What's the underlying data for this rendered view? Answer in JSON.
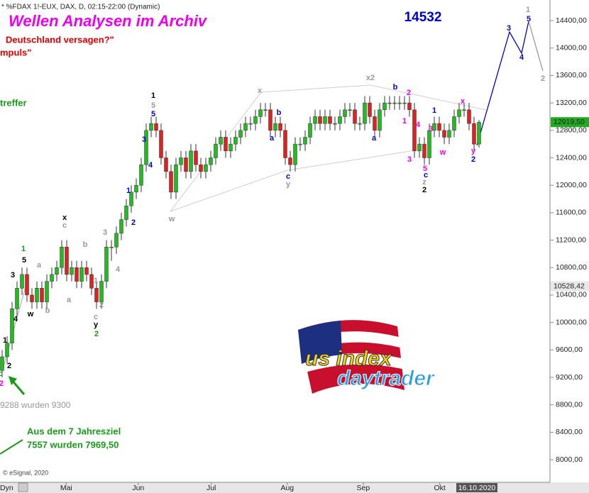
{
  "chart_data": {
    "type": "candlestick",
    "header": "* %FDAX 1!-EUX, DAX, D, 02:15-22:00 (Dynamic)",
    "title": "Wellen Analysen im Archiv",
    "headline_value": "14532",
    "notes": [
      "Deutschland versagen?\"",
      "mpuls\"",
      "treffer",
      "9288 wurden 9300",
      "Aus dem 7 Jahresziel",
      "7557 wurden 7969,50"
    ],
    "copyright": "© eSignal, 2020",
    "corner_label": "Dyn",
    "last_date_label": "16.10.2020",
    "logo": [
      "us index",
      "daytrader"
    ],
    "up_color": "#22bb22",
    "down_color": "#dd2222",
    "ylim": [
      7670,
      14700
    ],
    "yticks": [
      {
        "value": 8000,
        "label": "8000,00"
      },
      {
        "value": 8400,
        "label": "8400,00"
      },
      {
        "value": 8800,
        "label": "8800,00"
      },
      {
        "value": 9200,
        "label": "9200,00"
      },
      {
        "value": 9600,
        "label": "9600,00"
      },
      {
        "value": 10000,
        "label": "10000,00"
      },
      {
        "value": 10400,
        "label": "10400,00"
      },
      {
        "value": 10800,
        "label": "10800,00"
      },
      {
        "value": 11200,
        "label": "11200,00"
      },
      {
        "value": 11600,
        "label": "11600,00"
      },
      {
        "value": 12000,
        "label": "12000,00"
      },
      {
        "value": 12400,
        "label": "12400,00"
      },
      {
        "value": 12800,
        "label": "12800,00"
      },
      {
        "value": 13200,
        "label": "13200,00"
      },
      {
        "value": 13600,
        "label": "13600,00"
      },
      {
        "value": 14000,
        "label": "14000,00"
      },
      {
        "value": 14400,
        "label": "14400,00"
      }
    ],
    "xticks": [
      {
        "value": 12.9,
        "label": "Mai"
      },
      {
        "value": 27.4,
        "label": "Jun"
      },
      {
        "value": 42.1,
        "label": "Jul"
      },
      {
        "value": 57.4,
        "label": "Aug"
      },
      {
        "value": 72.7,
        "label": "Sep"
      },
      {
        "value": 88.1,
        "label": "Okt"
      }
    ],
    "price_labels": [
      {
        "value": 12919.5,
        "label": "12919,50",
        "color": "#22aa22"
      },
      {
        "value": 10528.42,
        "label": "10528,42",
        "color": "#e8e8e8"
      }
    ],
    "ohlc": [
      [
        9300,
        9600,
        9200,
        9500
      ],
      [
        9500,
        9800,
        9400,
        9700
      ],
      [
        9700,
        10300,
        9600,
        10200
      ],
      [
        10200,
        10600,
        10100,
        10500
      ],
      [
        10500,
        10800,
        10400,
        10700
      ],
      [
        10700,
        10800,
        10300,
        10400
      ],
      [
        10400,
        10500,
        10200,
        10300
      ],
      [
        10300,
        10600,
        10200,
        10500
      ],
      [
        10500,
        10600,
        10200,
        10300
      ],
      [
        10300,
        10700,
        10200,
        10600
      ],
      [
        10600,
        10800,
        10500,
        10700
      ],
      [
        10700,
        10900,
        10600,
        10800
      ],
      [
        10800,
        11200,
        10700,
        11100
      ],
      [
        11100,
        11200,
        10600,
        10700
      ],
      [
        10700,
        10900,
        10600,
        10800
      ],
      [
        10800,
        10900,
        10500,
        10600
      ],
      [
        10600,
        10900,
        10500,
        10800
      ],
      [
        10800,
        10900,
        10600,
        10700
      ],
      [
        10700,
        10800,
        10400,
        10500
      ],
      [
        10500,
        10600,
        10200,
        10300
      ],
      [
        10300,
        10700,
        10200,
        10600
      ],
      [
        10600,
        11200,
        10500,
        11100
      ],
      [
        11100,
        11200,
        10900,
        11100
      ],
      [
        11100,
        11400,
        11000,
        11300
      ],
      [
        11300,
        11600,
        11200,
        11500
      ],
      [
        11500,
        11800,
        11400,
        11700
      ],
      [
        11700,
        12000,
        11600,
        11900
      ],
      [
        11900,
        12100,
        11800,
        12000
      ],
      [
        12000,
        12400,
        11900,
        12300
      ],
      [
        12300,
        12900,
        12200,
        12800
      ],
      [
        12800,
        13000,
        12700,
        12900
      ],
      [
        12900,
        13000,
        12700,
        12800
      ],
      [
        12800,
        12900,
        12300,
        12400
      ],
      [
        12400,
        12500,
        12100,
        12200
      ],
      [
        12200,
        12300,
        11800,
        11900
      ],
      [
        11900,
        12400,
        11800,
        12300
      ],
      [
        12300,
        12500,
        12200,
        12400
      ],
      [
        12400,
        12500,
        12100,
        12200
      ],
      [
        12200,
        12600,
        12100,
        12500
      ],
      [
        12500,
        12600,
        12200,
        12300
      ],
      [
        12300,
        12400,
        12100,
        12200
      ],
      [
        12200,
        12400,
        12100,
        12300
      ],
      [
        12300,
        12500,
        12200,
        12400
      ],
      [
        12400,
        12700,
        12300,
        12600
      ],
      [
        12600,
        12800,
        12500,
        12700
      ],
      [
        12700,
        12800,
        12400,
        12500
      ],
      [
        12500,
        12700,
        12400,
        12600
      ],
      [
        12600,
        12800,
        12500,
        12700
      ],
      [
        12700,
        12900,
        12600,
        12800
      ],
      [
        12800,
        13000,
        12700,
        12900
      ],
      [
        12900,
        13000,
        12800,
        12900
      ],
      [
        12900,
        13100,
        12800,
        13000
      ],
      [
        13000,
        13200,
        12900,
        13100
      ],
      [
        13100,
        13200,
        13000,
        13100
      ],
      [
        13100,
        13200,
        12700,
        12800
      ],
      [
        12800,
        13000,
        12700,
        12900
      ],
      [
        12900,
        13000,
        12700,
        12800
      ],
      [
        12800,
        12900,
        12300,
        12400
      ],
      [
        12400,
        12500,
        12200,
        12300
      ],
      [
        12300,
        12700,
        12200,
        12600
      ],
      [
        12600,
        12700,
        12500,
        12600
      ],
      [
        12600,
        12800,
        12500,
        12700
      ],
      [
        12700,
        13000,
        12600,
        12900
      ],
      [
        12900,
        13100,
        12800,
        13000
      ],
      [
        13000,
        13100,
        12800,
        12900
      ],
      [
        12900,
        13100,
        12800,
        13000
      ],
      [
        13000,
        13100,
        12800,
        12900
      ],
      [
        12900,
        13000,
        12800,
        12900
      ],
      [
        12900,
        13100,
        12800,
        13000
      ],
      [
        13000,
        13200,
        12900,
        13100
      ],
      [
        13100,
        13200,
        13000,
        13100
      ],
      [
        13100,
        13200,
        12800,
        12900
      ],
      [
        12900,
        13000,
        12800,
        12900
      ],
      [
        12900,
        13300,
        12800,
        13200
      ],
      [
        13200,
        13300,
        12900,
        13000
      ],
      [
        13000,
        13100,
        12700,
        12800
      ],
      [
        12800,
        13200,
        12700,
        13100
      ],
      [
        13100,
        13300,
        13000,
        13200
      ],
      [
        13200,
        13300,
        13100,
        13200
      ],
      [
        13200,
        13300,
        13100,
        13200
      ],
      [
        13200,
        13300,
        13100,
        13200
      ],
      [
        13200,
        13300,
        13100,
        13200
      ],
      [
        13200,
        13300,
        13000,
        13100
      ],
      [
        13100,
        13200,
        12400,
        12500
      ],
      [
        12500,
        12700,
        12400,
        12600
      ],
      [
        12600,
        12700,
        12300,
        12400
      ],
      [
        12400,
        12900,
        12300,
        12800
      ],
      [
        12800,
        13000,
        12700,
        12900
      ],
      [
        12900,
        13000,
        12700,
        12800
      ],
      [
        12800,
        12900,
        12600,
        12700
      ],
      [
        12700,
        12900,
        12600,
        12800
      ],
      [
        12800,
        13100,
        12700,
        13000
      ],
      [
        13000,
        13200,
        12900,
        13100
      ],
      [
        13100,
        13200,
        13000,
        13100
      ],
      [
        13100,
        13200,
        12800,
        12900
      ],
      [
        12900,
        13000,
        12500,
        12600
      ],
      [
        12600,
        12950,
        12550,
        12919.5
      ]
    ],
    "annotations": [
      {
        "text": "1",
        "color": "#000000"
      },
      {
        "text": "c",
        "color": "#1a9a1a"
      },
      {
        "text": "2",
        "color": "#000000"
      },
      {
        "text": "2",
        "color": "#ee00ee"
      },
      {
        "text": "1",
        "color": "#1a9a1a"
      },
      {
        "text": "5",
        "color": "#000000"
      },
      {
        "text": "3",
        "color": "#000000"
      },
      {
        "text": "4",
        "color": "#000000"
      },
      {
        "text": "w",
        "color": "#000000"
      },
      {
        "text": "a",
        "color": "#999999"
      },
      {
        "text": "b",
        "color": "#999999"
      },
      {
        "text": "x",
        "color": "#000000"
      },
      {
        "text": "c",
        "color": "#999999"
      },
      {
        "text": "b",
        "color": "#999999"
      },
      {
        "text": "a",
        "color": "#999999"
      },
      {
        "text": "1",
        "color": "#999999"
      },
      {
        "text": "2",
        "color": "#999999"
      },
      {
        "text": "c",
        "color": "#999999"
      },
      {
        "text": "y",
        "color": "#000000"
      },
      {
        "text": "2",
        "color": "#1a9a1a"
      },
      {
        "text": "3",
        "color": "#999999"
      },
      {
        "text": "4",
        "color": "#999999"
      },
      {
        "text": "1",
        "color": "#0000cc"
      },
      {
        "text": "2",
        "color": "#0000cc"
      },
      {
        "text": "3",
        "color": "#0000cc"
      },
      {
        "text": "4",
        "color": "#0000cc"
      },
      {
        "text": "1",
        "color": "#000000"
      },
      {
        "text": "5",
        "color": "#999999"
      },
      {
        "text": "5",
        "color": "#0000cc"
      },
      {
        "text": "w",
        "color": "#999999"
      },
      {
        "text": "x",
        "color": "#999999"
      },
      {
        "text": "b",
        "color": "#0000cc"
      },
      {
        "text": "a",
        "color": "#0000cc"
      },
      {
        "text": "c",
        "color": "#0000cc"
      },
      {
        "text": "y",
        "color": "#999999"
      },
      {
        "text": "x2",
        "color": "#999999"
      },
      {
        "text": "b",
        "color": "#0000cc"
      },
      {
        "text": "2",
        "color": "#ee00ee"
      },
      {
        "text": "a",
        "color": "#0000cc"
      },
      {
        "text": "1",
        "color": "#ee00ee"
      },
      {
        "text": "4",
        "color": "#ee00ee"
      },
      {
        "text": "3",
        "color": "#ee00ee"
      },
      {
        "text": "1",
        "color": "#0000cc"
      },
      {
        "text": "3",
        "color": "#ee00ee"
      },
      {
        "text": "w",
        "color": "#ee00ee"
      },
      {
        "text": "5",
        "color": "#ee00ee"
      },
      {
        "text": "c",
        "color": "#0000cc"
      },
      {
        "text": "z",
        "color": "#999999"
      },
      {
        "text": "2",
        "color": "#000000"
      },
      {
        "text": "x",
        "color": "#ee00ee"
      },
      {
        "text": "y",
        "color": "#ee00ee"
      },
      {
        "text": "2",
        "color": "#0000cc"
      },
      {
        "text": "1",
        "color": "#999999"
      },
      {
        "text": "3",
        "color": "#0000cc"
      },
      {
        "text": "5",
        "color": "#0000cc"
      },
      {
        "text": "4",
        "color": "#0000cc"
      },
      {
        "text": "2",
        "color": "#999999"
      }
    ]
  }
}
